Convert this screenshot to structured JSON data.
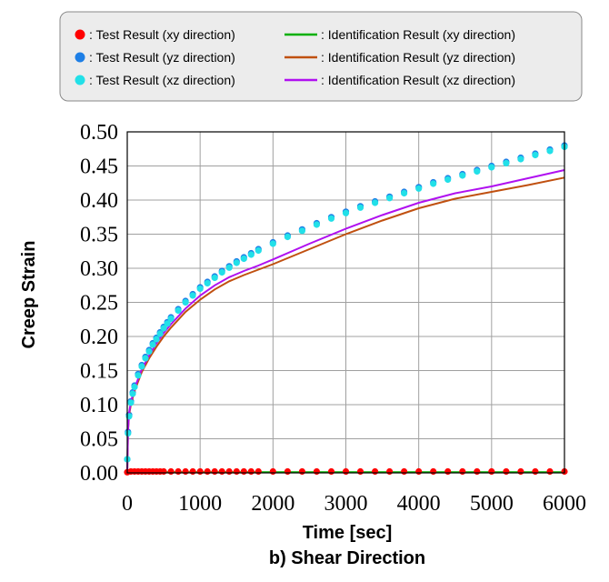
{
  "chart_data": {
    "type": "scatter",
    "title": "",
    "caption": "b) Shear Direction",
    "xlabel": "Time [sec]",
    "ylabel": "Creep Strain",
    "xlim": [
      0,
      6000
    ],
    "ylim": [
      0,
      0.5
    ],
    "xticks": [
      "0",
      "1000",
      "2000",
      "3000",
      "4000",
      "5000",
      "6000"
    ],
    "yticks": [
      "0.00",
      "0.05",
      "0.10",
      "0.15",
      "0.20",
      "0.25",
      "0.30",
      "0.35",
      "0.40",
      "0.45",
      "0.50"
    ],
    "grid": true,
    "legend_position": "top",
    "series": [
      {
        "name": ": Test Result (xy direction)",
        "kind": "points",
        "color": "#ff0000",
        "x": [
          0,
          50,
          100,
          150,
          200,
          250,
          300,
          350,
          400,
          450,
          500,
          600,
          700,
          800,
          900,
          1000,
          1100,
          1200,
          1300,
          1400,
          1500,
          1600,
          1700,
          1800,
          2000,
          2200,
          2400,
          2600,
          2800,
          3000,
          3200,
          3400,
          3600,
          3800,
          4000,
          4200,
          4400,
          4600,
          4800,
          5000,
          5200,
          5400,
          5600,
          5800,
          6000
        ],
        "y": [
          0.001,
          0.002,
          0.002,
          0.002,
          0.002,
          0.002,
          0.002,
          0.002,
          0.002,
          0.002,
          0.002,
          0.002,
          0.002,
          0.002,
          0.002,
          0.002,
          0.002,
          0.002,
          0.002,
          0.002,
          0.002,
          0.002,
          0.002,
          0.002,
          0.002,
          0.002,
          0.002,
          0.002,
          0.002,
          0.002,
          0.002,
          0.002,
          0.002,
          0.002,
          0.002,
          0.002,
          0.002,
          0.002,
          0.002,
          0.002,
          0.002,
          0.002,
          0.002,
          0.002,
          0.002
        ]
      },
      {
        "name": ": Test Result (yz direction)",
        "kind": "points",
        "color": "#1e7fe6",
        "x": [
          0,
          10,
          25,
          50,
          75,
          100,
          150,
          200,
          250,
          300,
          350,
          400,
          450,
          500,
          550,
          600,
          700,
          800,
          900,
          1000,
          1100,
          1200,
          1300,
          1400,
          1500,
          1600,
          1700,
          1800,
          2000,
          2200,
          2400,
          2600,
          2800,
          3000,
          3200,
          3400,
          3600,
          3800,
          4000,
          4200,
          4400,
          4600,
          4800,
          5000,
          5200,
          5400,
          5600,
          5800,
          6000
        ],
        "y": [
          0.02,
          0.06,
          0.085,
          0.105,
          0.118,
          0.128,
          0.145,
          0.158,
          0.17,
          0.18,
          0.19,
          0.198,
          0.206,
          0.214,
          0.221,
          0.228,
          0.24,
          0.252,
          0.262,
          0.272,
          0.28,
          0.288,
          0.296,
          0.303,
          0.31,
          0.316,
          0.322,
          0.328,
          0.338,
          0.348,
          0.357,
          0.366,
          0.375,
          0.383,
          0.391,
          0.398,
          0.405,
          0.412,
          0.419,
          0.426,
          0.432,
          0.438,
          0.444,
          0.45,
          0.456,
          0.462,
          0.468,
          0.474,
          0.48
        ]
      },
      {
        "name": ": Test Result (xz direction)",
        "kind": "points",
        "color": "#22e0e8",
        "x": [
          0,
          10,
          25,
          50,
          75,
          100,
          150,
          200,
          250,
          300,
          350,
          400,
          450,
          500,
          550,
          600,
          700,
          800,
          900,
          1000,
          1100,
          1200,
          1300,
          1400,
          1500,
          1600,
          1700,
          1800,
          2000,
          2200,
          2400,
          2600,
          2800,
          3000,
          3200,
          3400,
          3600,
          3800,
          4000,
          4200,
          4400,
          4600,
          4800,
          5000,
          5200,
          5400,
          5600,
          5800,
          6000
        ],
        "y": [
          0.02,
          0.058,
          0.083,
          0.103,
          0.116,
          0.126,
          0.143,
          0.156,
          0.168,
          0.178,
          0.188,
          0.196,
          0.204,
          0.212,
          0.219,
          0.226,
          0.238,
          0.25,
          0.26,
          0.27,
          0.278,
          0.286,
          0.294,
          0.301,
          0.308,
          0.314,
          0.32,
          0.326,
          0.336,
          0.346,
          0.355,
          0.364,
          0.373,
          0.381,
          0.389,
          0.396,
          0.403,
          0.41,
          0.417,
          0.424,
          0.43,
          0.436,
          0.442,
          0.448,
          0.454,
          0.46,
          0.466,
          0.472,
          0.478
        ]
      },
      {
        "name": ": Identification Result (xy direction)",
        "kind": "line",
        "color": "#00b000",
        "x": [
          0,
          50,
          200,
          1000,
          2000,
          3000,
          4000,
          5000,
          6000
        ],
        "y": [
          0.0,
          0.001,
          0.001,
          0.001,
          0.001,
          0.001,
          0.001,
          0.001,
          0.001
        ]
      },
      {
        "name": ": Identification Result (yz direction)",
        "kind": "line",
        "color": "#c05010",
        "x": [
          0,
          10,
          25,
          50,
          100,
          200,
          300,
          400,
          500,
          600,
          800,
          1000,
          1200,
          1400,
          1600,
          1800,
          2000,
          2500,
          3000,
          3500,
          4000,
          4500,
          5000,
          5500,
          6000
        ],
        "y": [
          0.0,
          0.06,
          0.085,
          0.1,
          0.12,
          0.148,
          0.168,
          0.185,
          0.2,
          0.213,
          0.236,
          0.254,
          0.269,
          0.281,
          0.29,
          0.298,
          0.306,
          0.328,
          0.35,
          0.37,
          0.388,
          0.402,
          0.412,
          0.422,
          0.433
        ]
      },
      {
        "name": ": Identification Result (xz direction)",
        "kind": "line",
        "color": "#b010f0",
        "x": [
          0,
          10,
          25,
          50,
          100,
          200,
          300,
          400,
          500,
          600,
          800,
          1000,
          1200,
          1400,
          1600,
          1800,
          2000,
          2500,
          3000,
          3500,
          4000,
          4500,
          5000,
          5500,
          6000
        ],
        "y": [
          0.0,
          0.062,
          0.088,
          0.104,
          0.124,
          0.152,
          0.172,
          0.19,
          0.205,
          0.218,
          0.241,
          0.26,
          0.275,
          0.287,
          0.296,
          0.304,
          0.313,
          0.336,
          0.358,
          0.378,
          0.396,
          0.41,
          0.42,
          0.432,
          0.444
        ]
      }
    ]
  }
}
